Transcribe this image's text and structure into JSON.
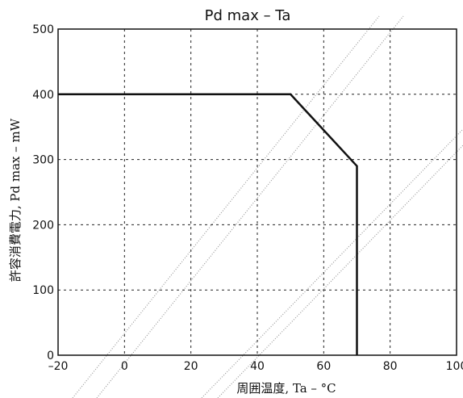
{
  "chart_data": {
    "type": "line",
    "title": "Pd max  –  Ta",
    "xlabel": "周囲温度, Ta – °C",
    "ylabel": "許容消費電力, Pd max – mW",
    "xlim": [
      -20,
      100
    ],
    "ylim": [
      0,
      500
    ],
    "xticks": [
      -20,
      0,
      20,
      40,
      60,
      80,
      100
    ],
    "yticks": [
      0,
      100,
      200,
      300,
      400,
      500
    ],
    "grid": true,
    "series": [
      {
        "x": [
          -20,
          50,
          70,
          70
        ],
        "y": [
          400,
          400,
          290,
          0
        ]
      }
    ],
    "colors": {
      "line": "#111111",
      "grid": "#222222"
    }
  }
}
